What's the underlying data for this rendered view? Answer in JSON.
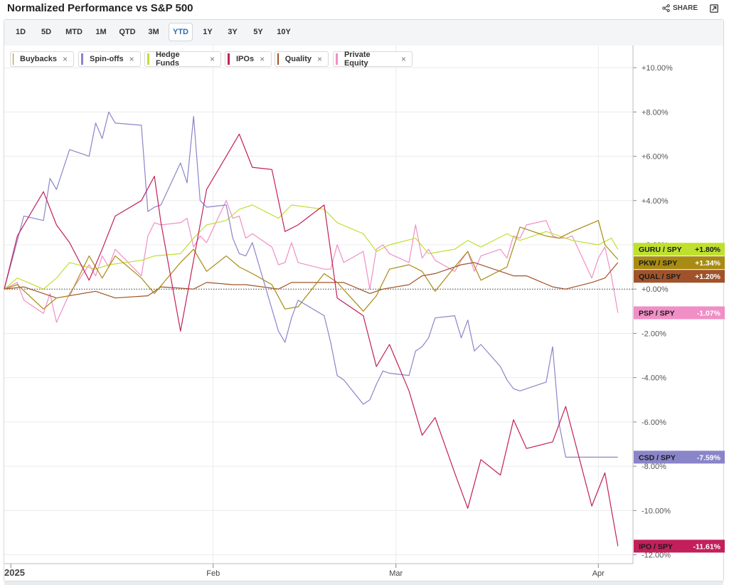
{
  "header": {
    "title": "Normalized Performance vs S&P 500",
    "share_label": "SHARE",
    "share_icon": "share-icon",
    "expand_icon": "expand-icon"
  },
  "ranges": {
    "items": [
      "1D",
      "5D",
      "MTD",
      "1M",
      "QTD",
      "3M",
      "YTD",
      "1Y",
      "3Y",
      "5Y",
      "10Y"
    ],
    "active": "YTD"
  },
  "legend": [
    {
      "label": "Buybacks",
      "color": "#a88b12"
    },
    {
      "label": "Spin-offs",
      "color": "#8a85c9"
    },
    {
      "label": "Hedge Funds",
      "color": "#bfe02f"
    },
    {
      "label": "IPOs",
      "color": "#c21f5b"
    },
    {
      "label": "Quality",
      "color": "#a0532a"
    },
    {
      "label": "Private Equity",
      "color": "#f08fc6"
    }
  ],
  "chart_data": {
    "type": "line",
    "y_tick_labels": [
      "+10.00%",
      "+8.00%",
      "+6.00%",
      "+4.00%",
      "+2.00%",
      "+0.00%",
      "-2.00%",
      "-4.00%",
      "-6.00%",
      "-8.00%",
      "-10.00%",
      "-12.00%"
    ],
    "y_ticks": [
      10,
      8,
      6,
      4,
      2,
      0,
      -2,
      -4,
      -6,
      -8,
      -10,
      -12
    ],
    "ylim": [
      -12.4,
      11
    ],
    "x_tick_labels": [
      "2025",
      "Feb",
      "Mar",
      "Apr"
    ],
    "x_ticks": [
      "2025-01-01",
      "2025-02-01",
      "2025-03-01",
      "2025-04-01"
    ],
    "xlim": [
      "2024-12-31",
      "2025-04-05"
    ],
    "grid": true,
    "baseline": 0,
    "series": [
      {
        "name": "Private Equity",
        "color": "#f08fc6",
        "label": "PSP / SPY",
        "value_label": "-1.07%",
        "x": [
          "2024-12-31",
          "2025-01-02",
          "2025-01-03",
          "2025-01-06",
          "2025-01-07",
          "2025-01-08",
          "2025-01-10",
          "2025-01-13",
          "2025-01-14",
          "2025-01-15",
          "2025-01-16",
          "2025-01-17",
          "2025-01-21",
          "2025-01-22",
          "2025-01-23",
          "2025-01-24",
          "2025-01-27",
          "2025-01-28",
          "2025-01-29",
          "2025-01-30",
          "2025-01-31",
          "2025-02-03",
          "2025-02-04",
          "2025-02-05",
          "2025-02-06",
          "2025-02-07",
          "2025-02-10",
          "2025-02-11",
          "2025-02-12",
          "2025-02-13",
          "2025-02-14",
          "2025-02-18",
          "2025-02-19",
          "2025-02-20",
          "2025-02-21",
          "2025-02-24",
          "2025-02-25",
          "2025-02-26",
          "2025-02-27",
          "2025-02-28",
          "2025-03-03",
          "2025-03-04",
          "2025-03-05",
          "2025-03-06",
          "2025-03-07",
          "2025-03-10",
          "2025-03-11",
          "2025-03-12",
          "2025-03-13",
          "2025-03-14",
          "2025-03-17",
          "2025-03-18",
          "2025-03-19",
          "2025-03-20",
          "2025-03-21",
          "2025-03-24",
          "2025-03-25",
          "2025-03-26",
          "2025-03-27",
          "2025-03-28",
          "2025-03-31",
          "2025-04-01",
          "2025-04-02",
          "2025-04-03",
          "2025-04-04"
        ],
        "values": [
          0.0,
          0.3,
          -0.5,
          -1.1,
          -0.2,
          -1.5,
          -0.2,
          1.1,
          0.6,
          1.5,
          1.0,
          1.8,
          0.6,
          2.4,
          3.0,
          2.9,
          3.0,
          3.2,
          1.9,
          2.4,
          2.1,
          4.0,
          3.2,
          3.3,
          2.3,
          2.5,
          1.9,
          1.1,
          1.2,
          2.1,
          1.2,
          0.9,
          0.9,
          2.0,
          1.2,
          1.7,
          0.0,
          1.8,
          2.0,
          1.6,
          1.2,
          2.9,
          1.4,
          1.8,
          1.3,
          0.8,
          1.3,
          1.7,
          0.8,
          1.5,
          1.8,
          1.4,
          2.4,
          2.3,
          2.9,
          3.1,
          2.4,
          2.3,
          2.3,
          2.4,
          0.5,
          1.4,
          1.9,
          0.6,
          -1.07
        ]
      },
      {
        "name": "Quality",
        "color": "#a0532a",
        "label": "QUAL / SPY",
        "value_label": "+1.20%",
        "x": [
          "2024-12-31",
          "2025-01-03",
          "2025-01-08",
          "2025-01-14",
          "2025-01-17",
          "2025-01-22",
          "2025-01-24",
          "2025-01-29",
          "2025-01-31",
          "2025-02-04",
          "2025-02-06",
          "2025-02-11",
          "2025-02-13",
          "2025-02-18",
          "2025-02-21",
          "2025-02-25",
          "2025-02-27",
          "2025-03-03",
          "2025-03-05",
          "2025-03-07",
          "2025-03-11",
          "2025-03-13",
          "2025-03-17",
          "2025-03-19",
          "2025-03-21",
          "2025-03-25",
          "2025-03-27",
          "2025-03-31",
          "2025-04-02",
          "2025-04-04"
        ],
        "values": [
          0.0,
          0.1,
          -0.4,
          -0.1,
          -0.4,
          -0.3,
          0.1,
          0.0,
          0.3,
          0.2,
          0.2,
          0.0,
          0.3,
          0.3,
          0.3,
          -0.2,
          0.0,
          0.2,
          0.6,
          0.7,
          1.1,
          1.2,
          0.8,
          0.6,
          0.6,
          0.1,
          0.0,
          0.3,
          0.5,
          1.2
        ]
      },
      {
        "name": "Hedge Funds",
        "color": "#bfe02f",
        "label": "GURU / SPY",
        "value_label": "+1.80%",
        "x": [
          "2024-12-31",
          "2025-01-02",
          "2025-01-06",
          "2025-01-08",
          "2025-01-10",
          "2025-01-14",
          "2025-01-16",
          "2025-01-21",
          "2025-01-23",
          "2025-01-27",
          "2025-01-29",
          "2025-01-31",
          "2025-02-03",
          "2025-02-05",
          "2025-02-07",
          "2025-02-11",
          "2025-02-13",
          "2025-02-18",
          "2025-02-20",
          "2025-02-24",
          "2025-02-26",
          "2025-02-28",
          "2025-03-04",
          "2025-03-06",
          "2025-03-10",
          "2025-03-12",
          "2025-03-14",
          "2025-03-18",
          "2025-03-20",
          "2025-03-24",
          "2025-03-26",
          "2025-03-28",
          "2025-04-01",
          "2025-04-03",
          "2025-04-04"
        ],
        "values": [
          0.0,
          0.5,
          0.0,
          0.5,
          1.2,
          0.9,
          1.1,
          1.3,
          1.5,
          1.6,
          2.3,
          2.9,
          3.1,
          3.6,
          3.8,
          3.2,
          3.8,
          3.6,
          3.0,
          2.5,
          1.7,
          2.0,
          2.3,
          1.6,
          1.8,
          2.2,
          1.9,
          2.5,
          2.2,
          2.6,
          2.4,
          2.2,
          2.0,
          2.3,
          1.8
        ]
      },
      {
        "name": "Buybacks",
        "color": "#a88b12",
        "label": "PKW / SPY",
        "value_label": "+1.34%",
        "x": [
          "2024-12-31",
          "2025-01-02",
          "2025-01-06",
          "2025-01-08",
          "2025-01-10",
          "2025-01-13",
          "2025-01-15",
          "2025-01-17",
          "2025-01-21",
          "2025-01-23",
          "2025-01-27",
          "2025-01-29",
          "2025-01-31",
          "2025-02-03",
          "2025-02-05",
          "2025-02-07",
          "2025-02-10",
          "2025-02-12",
          "2025-02-14",
          "2025-02-18",
          "2025-02-20",
          "2025-02-24",
          "2025-02-26",
          "2025-02-28",
          "2025-03-03",
          "2025-03-05",
          "2025-03-07",
          "2025-03-10",
          "2025-03-12",
          "2025-03-14",
          "2025-03-18",
          "2025-03-20",
          "2025-03-24",
          "2025-03-26",
          "2025-03-28",
          "2025-04-01",
          "2025-04-02",
          "2025-04-04"
        ],
        "values": [
          0.0,
          0.2,
          -0.9,
          -0.4,
          -0.3,
          1.5,
          0.5,
          1.5,
          0.5,
          -0.2,
          1.2,
          1.8,
          0.8,
          1.5,
          1.0,
          0.7,
          0.2,
          -0.9,
          -0.8,
          0.7,
          0.3,
          -1.0,
          -0.3,
          0.9,
          1.1,
          0.8,
          -0.1,
          1.0,
          1.7,
          0.4,
          1.0,
          2.8,
          2.4,
          2.3,
          2.6,
          3.1,
          2.0,
          1.34
        ]
      },
      {
        "name": "Spin-offs",
        "color": "#8a85c9",
        "label": "CSD / SPY",
        "value_label": "-7.59%",
        "x": [
          "2024-12-31",
          "2025-01-02",
          "2025-01-03",
          "2025-01-06",
          "2025-01-07",
          "2025-01-08",
          "2025-01-10",
          "2025-01-13",
          "2025-01-14",
          "2025-01-15",
          "2025-01-16",
          "2025-01-17",
          "2025-01-21",
          "2025-01-22",
          "2025-01-23",
          "2025-01-24",
          "2025-01-27",
          "2025-01-28",
          "2025-01-29",
          "2025-01-30",
          "2025-01-31",
          "2025-02-03",
          "2025-02-04",
          "2025-02-05",
          "2025-02-06",
          "2025-02-07",
          "2025-02-10",
          "2025-02-11",
          "2025-02-12",
          "2025-02-13",
          "2025-02-14",
          "2025-02-18",
          "2025-02-19",
          "2025-02-20",
          "2025-02-21",
          "2025-02-24",
          "2025-02-25",
          "2025-02-26",
          "2025-02-27",
          "2025-02-28",
          "2025-03-03",
          "2025-03-04",
          "2025-03-05",
          "2025-03-06",
          "2025-03-07",
          "2025-03-10",
          "2025-03-11",
          "2025-03-12",
          "2025-03-13",
          "2025-03-14",
          "2025-03-17",
          "2025-03-18",
          "2025-03-19",
          "2025-03-20",
          "2025-03-21",
          "2025-03-24",
          "2025-03-25",
          "2025-03-26",
          "2025-03-27",
          "2025-03-28",
          "2025-03-31",
          "2025-04-01",
          "2025-04-02",
          "2025-04-03",
          "2025-04-04"
        ],
        "values": [
          0.0,
          2.2,
          3.3,
          3.1,
          5.0,
          4.5,
          6.3,
          6.0,
          7.5,
          6.8,
          8.0,
          7.5,
          7.4,
          3.5,
          3.7,
          3.8,
          5.7,
          4.8,
          7.8,
          4.0,
          3.7,
          3.8,
          2.3,
          1.6,
          1.5,
          2.1,
          -0.9,
          -1.9,
          -2.4,
          -1.3,
          -0.5,
          -1.2,
          -2.4,
          -3.9,
          -4.1,
          -5.2,
          -5.0,
          -4.3,
          -3.7,
          -3.8,
          -3.9,
          -2.8,
          -2.6,
          -2.2,
          -1.3,
          -1.2,
          -2.2,
          -1.4,
          -2.8,
          -2.5,
          -3.5,
          -4.1,
          -4.5,
          -4.6,
          -4.5,
          -4.2,
          -2.6,
          -6.1,
          -7.59,
          -7.59,
          -7.59,
          -7.59,
          -7.59,
          -7.59,
          -7.59
        ]
      },
      {
        "name": "IPOs",
        "color": "#c21f5b",
        "label": "IPO / SPY",
        "value_label": "-11.61%",
        "x": [
          "2024-12-31",
          "2025-01-02",
          "2025-01-06",
          "2025-01-08",
          "2025-01-10",
          "2025-01-13",
          "2025-01-15",
          "2025-01-17",
          "2025-01-21",
          "2025-01-23",
          "2025-01-24",
          "2025-01-27",
          "2025-01-29",
          "2025-01-31",
          "2025-02-03",
          "2025-02-05",
          "2025-02-07",
          "2025-02-10",
          "2025-02-12",
          "2025-02-14",
          "2025-02-18",
          "2025-02-20",
          "2025-02-24",
          "2025-02-26",
          "2025-02-28",
          "2025-03-03",
          "2025-03-05",
          "2025-03-07",
          "2025-03-10",
          "2025-03-12",
          "2025-03-14",
          "2025-03-17",
          "2025-03-19",
          "2025-03-21",
          "2025-03-25",
          "2025-03-27",
          "2025-03-31",
          "2025-04-02",
          "2025-04-04"
        ],
        "values": [
          0.0,
          2.4,
          4.4,
          2.9,
          2.1,
          0.4,
          1.8,
          3.3,
          4.0,
          5.1,
          3.0,
          -1.9,
          1.3,
          4.5,
          6.0,
          7.0,
          5.5,
          5.4,
          2.6,
          2.9,
          3.8,
          -0.4,
          -1.2,
          -3.5,
          -2.5,
          -4.6,
          -6.6,
          -5.8,
          -8.3,
          -9.9,
          -7.7,
          -8.4,
          -5.9,
          -7.2,
          -6.9,
          -5.3,
          -9.8,
          -8.3,
          -11.61
        ]
      }
    ]
  }
}
